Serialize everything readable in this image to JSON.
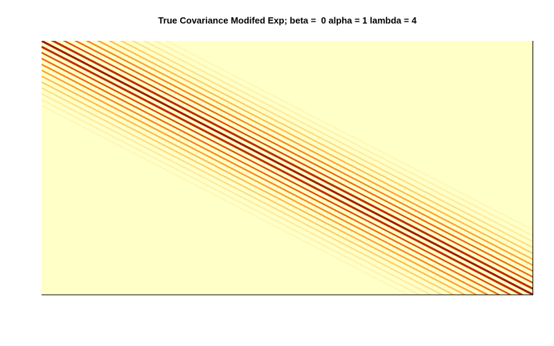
{
  "chart_data": {
    "type": "heatmap",
    "title": "True Covariance Modifed Exp; beta =  0 alpha = 1 lambda = 4",
    "xlabel": "",
    "ylabel": "",
    "axes_visible": false,
    "grid": false,
    "legend": "none",
    "colormap": [
      "#FFFFC8",
      "#FFE89A",
      "#FFC65C",
      "#FF9A2A",
      "#F26A0C",
      "#D43A00",
      "#A01A00"
    ],
    "background_color": "#FFFFC8",
    "structure": "banded diagonal covariance, decaying off-diagonal stripes",
    "diagonal_bands": [
      {
        "offset": 0,
        "strength": 1.0
      },
      {
        "offset": 1,
        "strength": 0.9
      },
      {
        "offset": -1,
        "strength": 0.9
      },
      {
        "offset": 2,
        "strength": 0.78
      },
      {
        "offset": -2,
        "strength": 0.78
      },
      {
        "offset": 3,
        "strength": 0.68
      },
      {
        "offset": -3,
        "strength": 0.68
      },
      {
        "offset": 4,
        "strength": 0.58
      },
      {
        "offset": -4,
        "strength": 0.58
      },
      {
        "offset": 5,
        "strength": 0.48
      },
      {
        "offset": -5,
        "strength": 0.48
      },
      {
        "offset": 6,
        "strength": 0.38
      },
      {
        "offset": -6,
        "strength": 0.38
      },
      {
        "offset": 7,
        "strength": 0.3
      },
      {
        "offset": -7,
        "strength": 0.3
      },
      {
        "offset": 8,
        "strength": 0.22
      },
      {
        "offset": -8,
        "strength": 0.22
      },
      {
        "offset": 9,
        "strength": 0.15
      },
      {
        "offset": -9,
        "strength": 0.15
      },
      {
        "offset": 10,
        "strength": 0.1
      },
      {
        "offset": -10,
        "strength": 0.1
      },
      {
        "offset": 11,
        "strength": 0.06
      },
      {
        "offset": -11,
        "strength": 0.06
      }
    ]
  }
}
